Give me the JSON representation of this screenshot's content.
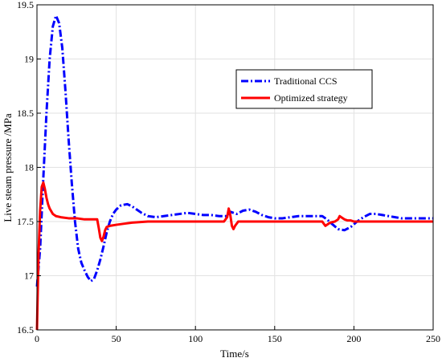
{
  "chart_data": {
    "type": "line",
    "xlabel": "Time/s",
    "ylabel": "Live steam pressure /MPa",
    "xlim": [
      0,
      250
    ],
    "ylim": [
      16.5,
      19.5
    ],
    "xticks": [
      "0",
      "50",
      "100",
      "150",
      "200",
      "250"
    ],
    "yticks": [
      "16.5",
      "17",
      "17.5",
      "18",
      "18.5",
      "19",
      "19.5"
    ],
    "grid": true,
    "legend_position": "upper-right",
    "series": [
      {
        "name": "Traditional CCS",
        "color": "#0000ff",
        "style": "dash-dot",
        "points": [
          [
            0,
            16.9
          ],
          [
            2,
            17.25
          ],
          [
            4,
            17.9
          ],
          [
            6,
            18.5
          ],
          [
            8,
            19.0
          ],
          [
            10,
            19.3
          ],
          [
            12,
            19.4
          ],
          [
            14,
            19.33
          ],
          [
            16,
            19.1
          ],
          [
            18,
            18.7
          ],
          [
            20,
            18.25
          ],
          [
            22,
            17.85
          ],
          [
            24,
            17.5
          ],
          [
            26,
            17.25
          ],
          [
            28,
            17.12
          ],
          [
            30,
            17.05
          ],
          [
            32,
            16.99
          ],
          [
            34,
            16.95
          ],
          [
            36,
            16.97
          ],
          [
            38,
            17.05
          ],
          [
            40,
            17.15
          ],
          [
            42,
            17.27
          ],
          [
            44,
            17.4
          ],
          [
            46,
            17.5
          ],
          [
            48,
            17.57
          ],
          [
            50,
            17.61
          ],
          [
            53,
            17.65
          ],
          [
            57,
            17.66
          ],
          [
            60,
            17.64
          ],
          [
            63,
            17.61
          ],
          [
            66,
            17.58
          ],
          [
            70,
            17.55
          ],
          [
            75,
            17.54
          ],
          [
            80,
            17.55
          ],
          [
            85,
            17.56
          ],
          [
            90,
            17.57
          ],
          [
            95,
            17.58
          ],
          [
            100,
            17.57
          ],
          [
            105,
            17.56
          ],
          [
            110,
            17.56
          ],
          [
            115,
            17.55
          ],
          [
            120,
            17.55
          ],
          [
            122,
            17.59
          ],
          [
            124,
            17.58
          ],
          [
            126,
            17.57
          ],
          [
            130,
            17.6
          ],
          [
            134,
            17.61
          ],
          [
            138,
            17.59
          ],
          [
            142,
            17.56
          ],
          [
            146,
            17.54
          ],
          [
            150,
            17.53
          ],
          [
            155,
            17.53
          ],
          [
            160,
            17.54
          ],
          [
            165,
            17.55
          ],
          [
            170,
            17.55
          ],
          [
            175,
            17.55
          ],
          [
            180,
            17.55
          ],
          [
            183,
            17.52
          ],
          [
            186,
            17.48
          ],
          [
            190,
            17.43
          ],
          [
            194,
            17.42
          ],
          [
            198,
            17.45
          ],
          [
            202,
            17.5
          ],
          [
            206,
            17.54
          ],
          [
            210,
            17.57
          ],
          [
            214,
            17.57
          ],
          [
            218,
            17.56
          ],
          [
            222,
            17.55
          ],
          [
            226,
            17.54
          ],
          [
            230,
            17.53
          ],
          [
            235,
            17.53
          ],
          [
            240,
            17.53
          ],
          [
            245,
            17.53
          ],
          [
            250,
            17.53
          ]
        ]
      },
      {
        "name": "Optimized strategy",
        "color": "#ff0000",
        "style": "solid",
        "points": [
          [
            0,
            16.5
          ],
          [
            1,
            17.2
          ],
          [
            2,
            17.6
          ],
          [
            3,
            17.82
          ],
          [
            4,
            17.86
          ],
          [
            5,
            17.8
          ],
          [
            6,
            17.72
          ],
          [
            7,
            17.66
          ],
          [
            8,
            17.62
          ],
          [
            10,
            17.57
          ],
          [
            12,
            17.55
          ],
          [
            15,
            17.54
          ],
          [
            20,
            17.53
          ],
          [
            25,
            17.53
          ],
          [
            30,
            17.52
          ],
          [
            35,
            17.52
          ],
          [
            38,
            17.52
          ],
          [
            39,
            17.44
          ],
          [
            40,
            17.35
          ],
          [
            41,
            17.32
          ],
          [
            42,
            17.36
          ],
          [
            43,
            17.42
          ],
          [
            44,
            17.45
          ],
          [
            46,
            17.46
          ],
          [
            50,
            17.47
          ],
          [
            55,
            17.48
          ],
          [
            60,
            17.49
          ],
          [
            70,
            17.5
          ],
          [
            80,
            17.5
          ],
          [
            90,
            17.5
          ],
          [
            100,
            17.5
          ],
          [
            110,
            17.5
          ],
          [
            118,
            17.5
          ],
          [
            120,
            17.54
          ],
          [
            121,
            17.62
          ],
          [
            122,
            17.56
          ],
          [
            123,
            17.46
          ],
          [
            124,
            17.43
          ],
          [
            125,
            17.46
          ],
          [
            127,
            17.5
          ],
          [
            130,
            17.5
          ],
          [
            140,
            17.5
          ],
          [
            150,
            17.5
          ],
          [
            160,
            17.5
          ],
          [
            170,
            17.5
          ],
          [
            178,
            17.5
          ],
          [
            180,
            17.5
          ],
          [
            181,
            17.48
          ],
          [
            182,
            17.46
          ],
          [
            183,
            17.47
          ],
          [
            185,
            17.49
          ],
          [
            188,
            17.5
          ],
          [
            190,
            17.52
          ],
          [
            191,
            17.55
          ],
          [
            192,
            17.54
          ],
          [
            194,
            17.52
          ],
          [
            196,
            17.51
          ],
          [
            198,
            17.51
          ],
          [
            200,
            17.5
          ],
          [
            210,
            17.5
          ],
          [
            220,
            17.5
          ],
          [
            230,
            17.5
          ],
          [
            240,
            17.5
          ],
          [
            250,
            17.5
          ]
        ]
      }
    ]
  }
}
